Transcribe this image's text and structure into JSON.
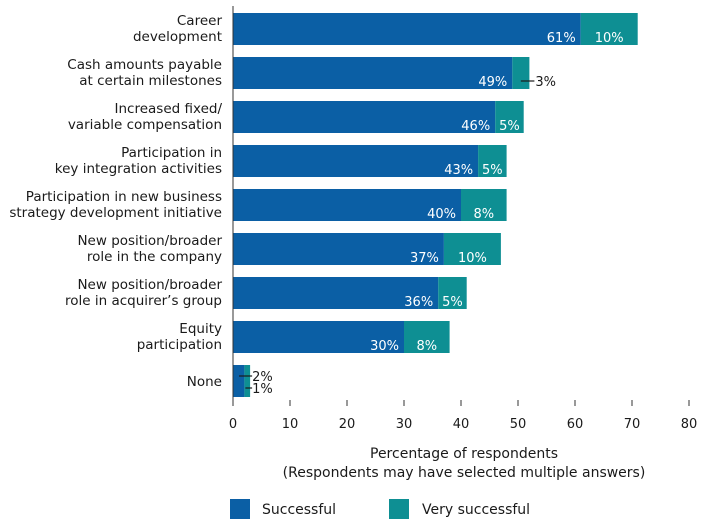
{
  "chart_data": {
    "type": "bar",
    "orientation": "horizontal",
    "stacked": true,
    "categories": [
      [
        "Career",
        "development"
      ],
      [
        "Cash amounts payable",
        "at certain milestones"
      ],
      [
        "Increased fixed/",
        "variable compensation"
      ],
      [
        "Participation in",
        "key integration activities"
      ],
      [
        "Participation in new business",
        "strategy development initiative"
      ],
      [
        "New position/broader",
        "role in the company"
      ],
      [
        "New position/broader",
        "role in acquirer’s group"
      ],
      [
        "Equity",
        "participation"
      ],
      [
        "None"
      ]
    ],
    "series": [
      {
        "name": "Successful",
        "color": "#0b5fa5",
        "values": [
          61,
          49,
          46,
          43,
          40,
          37,
          36,
          30,
          2
        ],
        "labels": [
          "61%",
          "49%",
          "46%",
          "43%",
          "40%",
          "37%",
          "36%",
          "30%",
          "2%"
        ]
      },
      {
        "name": "Very successful",
        "color": "#0e8f93",
        "values": [
          10,
          3,
          5,
          5,
          8,
          10,
          5,
          8,
          1
        ],
        "labels": [
          "10%",
          "3%",
          "5%",
          "5%",
          "8%",
          "10%",
          "5%",
          "8%",
          "1%"
        ]
      }
    ],
    "xlim": [
      0,
      80
    ],
    "xticks": [
      0,
      10,
      20,
      30,
      40,
      50,
      60,
      70,
      80
    ],
    "xlabel": [
      "Percentage of respondents",
      "(Respondents may have selected multiple answers)"
    ],
    "legend_position": "bottom",
    "grid": false
  }
}
